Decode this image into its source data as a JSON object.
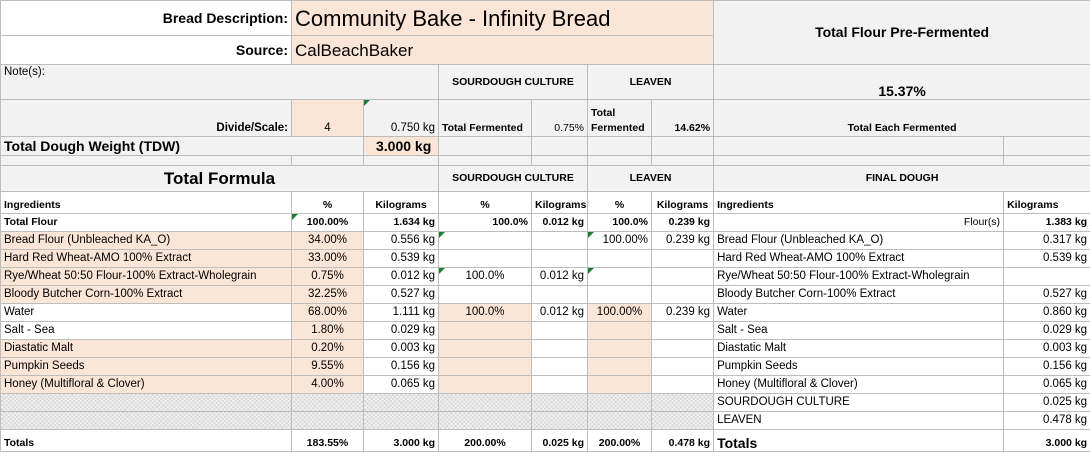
{
  "header": {
    "desc_label": "Bread Description:",
    "desc_value": "Community Bake - Infinity Bread",
    "source_label": "Source:",
    "source_value": "CalBeachBaker",
    "pre_fermented_label": "Total Flour Pre-Fermented",
    "pre_fermented_value": "15.37%",
    "notes_label": "Note(s):",
    "sourdough_culture": "SOURDOUGH CULTURE",
    "leaven": "LEAVEN",
    "divide_label": "Divide/Scale:",
    "divide_value": "4",
    "divide_weight": "0.750 kg",
    "total_fermented_label": "Total Fermented",
    "sd_fermented_pct": "0.75%",
    "lv_total_fermented_label": "Total Fermented",
    "lv_fermented_pct": "14.62%",
    "total_each_fermented": "Total Each Fermented",
    "tdw_label": "Total Dough Weight (TDW)",
    "tdw_value": "3.000 kg"
  },
  "formula": {
    "title": "Total Formula",
    "sd_title": "SOURDOUGH CULTURE",
    "lv_title": "LEAVEN",
    "fd_title": "FINAL DOUGH",
    "col_ingredients": "Ingredients",
    "col_pct": "%",
    "col_kg": "Kilograms"
  },
  "rows": [
    {
      "name": "Total Flour",
      "pct": "100.00%",
      "kg": "1.634 kg",
      "sd_pct": "100.0%",
      "sd_kg": "0.012 kg",
      "lv_pct": "100.0%",
      "lv_kg": "0.239 kg",
      "fd_name": "Flour(s)",
      "fd_kg": "1.383 kg"
    },
    {
      "name": "Bread Flour (Unbleached KA_O)",
      "pct": "34.00%",
      "kg": "0.556 kg",
      "sd_pct": "",
      "sd_kg": "",
      "lv_pct": "100.00%",
      "lv_kg": "0.239 kg",
      "fd_name": "Bread Flour (Unbleached KA_O)",
      "fd_kg": "0.317 kg"
    },
    {
      "name": "Hard Red Wheat-AMO 100% Extract",
      "pct": "33.00%",
      "kg": "0.539 kg",
      "sd_pct": "",
      "sd_kg": "",
      "lv_pct": "",
      "lv_kg": "",
      "fd_name": "Hard Red Wheat-AMO 100% Extract",
      "fd_kg": "0.539 kg"
    },
    {
      "name": "Rye/Wheat 50:50 Flour-100% Extract-Wholegrain",
      "pct": "0.75%",
      "kg": "0.012 kg",
      "sd_pct": "100.0%",
      "sd_kg": "0.012 kg",
      "lv_pct": "",
      "lv_kg": "",
      "fd_name": "Rye/Wheat 50:50 Flour-100% Extract-Wholegrain",
      "fd_kg": ""
    },
    {
      "name": "Bloody Butcher Corn-100% Extract",
      "pct": "32.25%",
      "kg": "0.527 kg",
      "sd_pct": "",
      "sd_kg": "",
      "lv_pct": "",
      "lv_kg": "",
      "fd_name": "Bloody Butcher Corn-100% Extract",
      "fd_kg": "0.527 kg"
    },
    {
      "name": "Water",
      "pct": "68.00%",
      "kg": "1.111 kg",
      "sd_pct": "100.0%",
      "sd_kg": "0.012 kg",
      "lv_pct": "100.00%",
      "lv_kg": "0.239 kg",
      "fd_name": "Water",
      "fd_kg": "0.860 kg"
    },
    {
      "name": "Salt - Sea",
      "pct": "1.80%",
      "kg": "0.029 kg",
      "sd_pct": "",
      "sd_kg": "",
      "lv_pct": "",
      "lv_kg": "",
      "fd_name": "Salt - Sea",
      "fd_kg": "0.029 kg"
    },
    {
      "name": "Diastatic Malt",
      "pct": "0.20%",
      "kg": "0.003 kg",
      "sd_pct": "",
      "sd_kg": "",
      "lv_pct": "",
      "lv_kg": "",
      "fd_name": "Diastatic Malt",
      "fd_kg": "0.003 kg"
    },
    {
      "name": "Pumpkin Seeds",
      "pct": "9.55%",
      "kg": "0.156 kg",
      "sd_pct": "",
      "sd_kg": "",
      "lv_pct": "",
      "lv_kg": "",
      "fd_name": "Pumpkin Seeds",
      "fd_kg": "0.156 kg"
    },
    {
      "name": "Honey (Multifloral & Clover)",
      "pct": "4.00%",
      "kg": "0.065 kg",
      "sd_pct": "",
      "sd_kg": "",
      "lv_pct": "",
      "lv_kg": "",
      "fd_name": "Honey (Multifloral & Clover)",
      "fd_kg": "0.065 kg"
    }
  ],
  "extra_rows": [
    {
      "fd_name": "SOURDOUGH CULTURE",
      "fd_kg": "0.025 kg"
    },
    {
      "fd_name": "LEAVEN",
      "fd_kg": "0.478 kg"
    }
  ],
  "totals": {
    "label": "Totals",
    "pct": "183.55%",
    "kg": "3.000 kg",
    "sd_pct": "200.00%",
    "sd_kg": "0.025 kg",
    "lv_pct": "200.00%",
    "lv_kg": "0.478 kg",
    "fd_label": "Totals",
    "fd_kg": "3.000 kg"
  }
}
